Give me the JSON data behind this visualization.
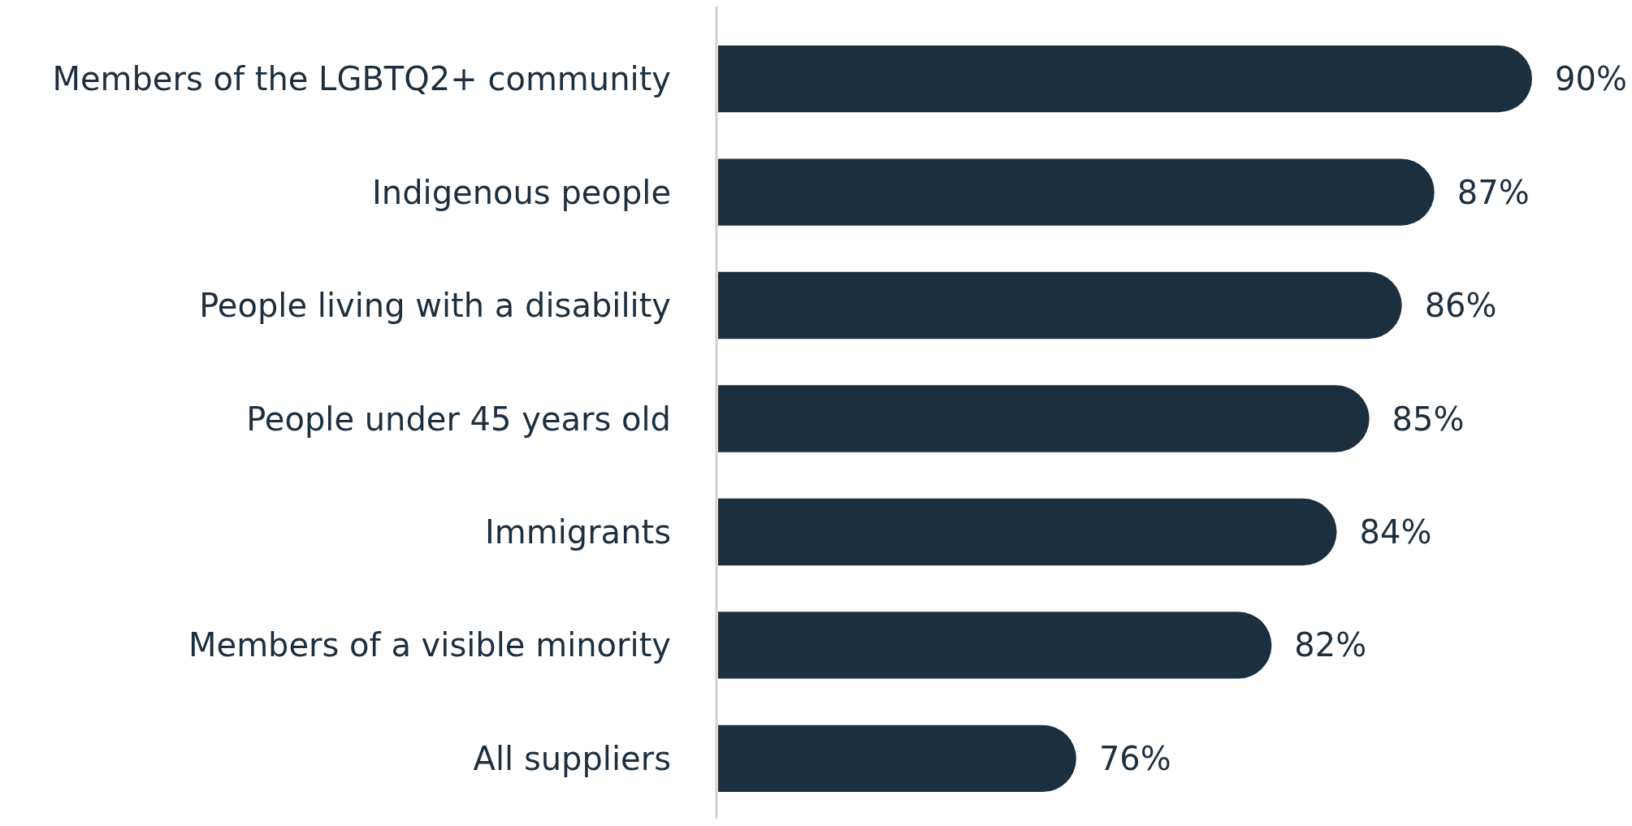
{
  "chart_data": {
    "type": "bar",
    "orientation": "horizontal",
    "categories": [
      "Members of the LGBTQ2+ community",
      "Indigenous people",
      "People living with a disability",
      "People under 45 years old",
      "Immigrants",
      "Members of a visible minority",
      "All suppliers"
    ],
    "values": [
      90,
      87,
      86,
      85,
      84,
      82,
      76
    ],
    "value_labels": [
      "90%",
      "87%",
      "86%",
      "85%",
      "84%",
      "82%",
      "76%"
    ],
    "color": "#1c2f3f",
    "xlim": [
      65,
      90
    ],
    "tick_labels": "y"
  }
}
